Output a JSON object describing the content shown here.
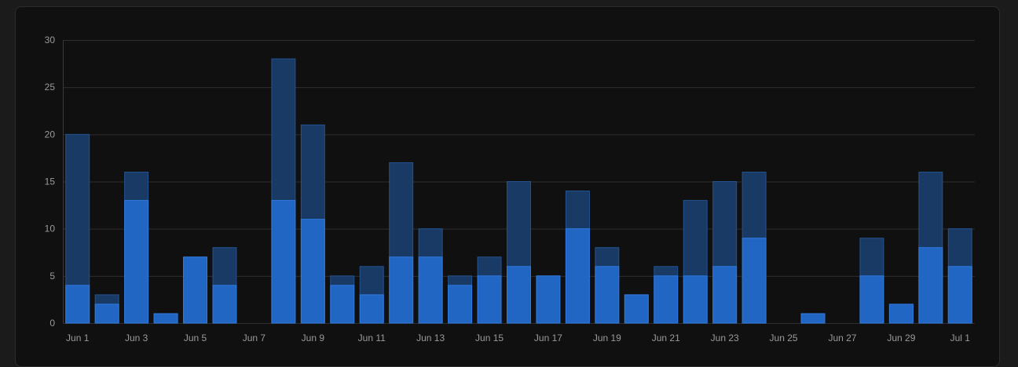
{
  "chart_data": {
    "type": "bar",
    "stacking": "overlay",
    "categories": [
      "Jun 1",
      "Jun 2",
      "Jun 3",
      "Jun 4",
      "Jun 5",
      "Jun 6",
      "Jun 7",
      "Jun 8",
      "Jun 9",
      "Jun 10",
      "Jun 11",
      "Jun 12",
      "Jun 13",
      "Jun 14",
      "Jun 15",
      "Jun 16",
      "Jun 17",
      "Jun 18",
      "Jun 19",
      "Jun 20",
      "Jun 21",
      "Jun 22",
      "Jun 23",
      "Jun 24",
      "Jun 25",
      "Jun 26",
      "Jun 27",
      "Jun 28",
      "Jun 29",
      "Jun 30",
      "Jul 1"
    ],
    "x_tick_labels": [
      "Jun 1",
      "Jun 3",
      "Jun 5",
      "Jun 7",
      "Jun 9",
      "Jun 11",
      "Jun 13",
      "Jun 15",
      "Jun 17",
      "Jun 19",
      "Jun 21",
      "Jun 23",
      "Jun 25",
      "Jun 27",
      "Jun 29",
      "Jul 1"
    ],
    "y_ticks": [
      "0",
      "5",
      "10",
      "15",
      "20",
      "25",
      "30"
    ],
    "ylim": [
      0,
      30
    ],
    "grid": true,
    "legend": "none",
    "series": [
      {
        "role": "total",
        "color": "#1a3a66",
        "values": [
          20,
          3,
          16,
          1,
          7,
          8,
          0,
          28,
          21,
          5,
          6,
          17,
          10,
          5,
          7,
          15,
          5,
          14,
          8,
          3,
          6,
          13,
          15,
          16,
          0,
          1,
          0,
          9,
          2,
          16,
          10
        ]
      },
      {
        "role": "part",
        "color": "#2266c4",
        "values": [
          4,
          2,
          13,
          1,
          7,
          4,
          0,
          13,
          11,
          4,
          3,
          7,
          7,
          4,
          5,
          6,
          5,
          10,
          6,
          3,
          5,
          5,
          6,
          9,
          0,
          1,
          0,
          5,
          2,
          8,
          6
        ]
      }
    ]
  }
}
